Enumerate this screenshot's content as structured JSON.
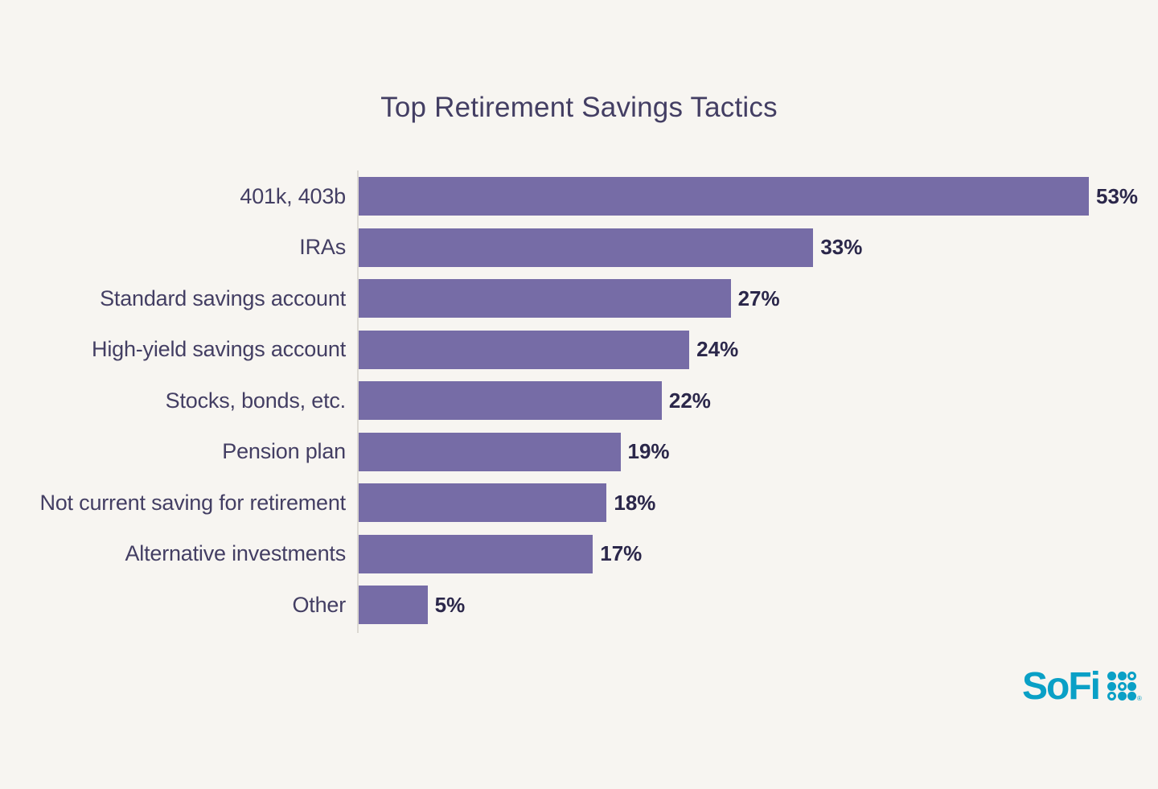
{
  "title": "Top Retirement Savings Tactics",
  "chart_data": {
    "type": "bar",
    "orientation": "horizontal",
    "title": "Top Retirement Savings Tactics",
    "categories": [
      "401k, 403b",
      "IRAs",
      "Standard savings account",
      "High-yield savings account",
      "Stocks, bonds, etc.",
      "Pension plan",
      "Not current saving for retirement",
      "Alternative investments",
      "Other"
    ],
    "values": [
      53,
      33,
      27,
      24,
      22,
      19,
      18,
      17,
      5
    ],
    "value_labels": [
      "53%",
      "33%",
      "27%",
      "24%",
      "22%",
      "19%",
      "18%",
      "17%",
      "5%"
    ],
    "unit": "%",
    "xlabel": "",
    "ylabel": "",
    "xlim": [
      0,
      58
    ],
    "grid": false,
    "legend": false,
    "bar_color": "#766CA6",
    "category_label_color": "#433E63",
    "value_label_color": "#2B274A",
    "axis_line_color": "#DCD9D2",
    "background_color": "#F7F5F1"
  },
  "branding": {
    "logo_text": "SoFi",
    "logo_color": "#0AA0C6",
    "logo_grid": [
      "solid",
      "solid",
      "ring",
      "solid",
      "ring",
      "solid",
      "ring",
      "solid",
      "solid"
    ],
    "trademark": "®"
  }
}
